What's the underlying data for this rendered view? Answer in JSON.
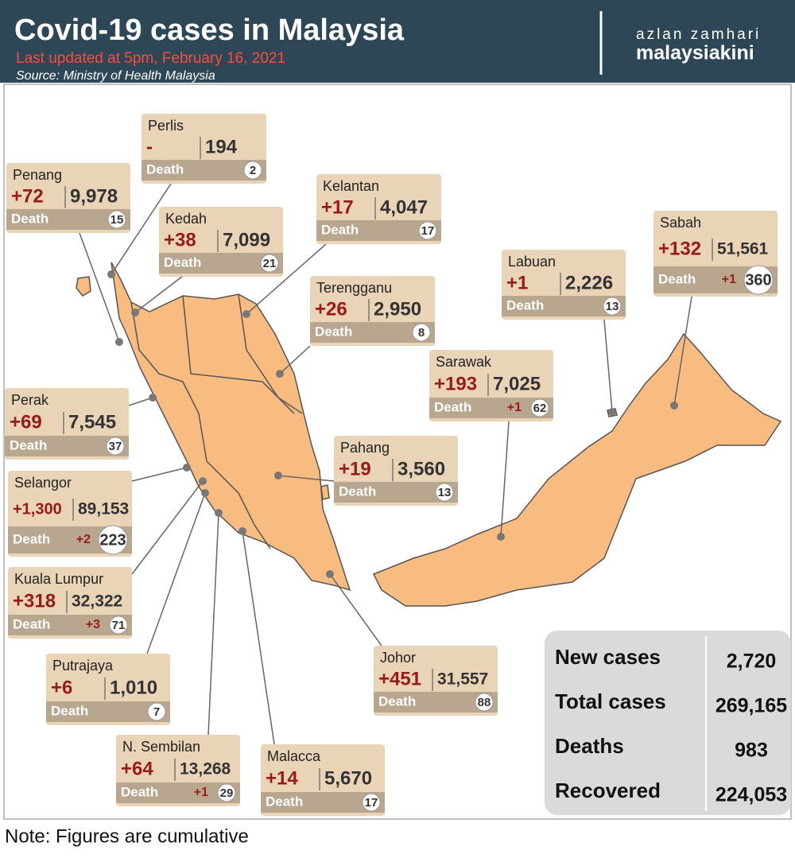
{
  "header": {
    "title": "Covid-19 cases in Malaysia",
    "subtitle": "Last updated at 5pm, February 16, 2021",
    "source": "Source: Ministry of Health Malaysia"
  },
  "brand": {
    "author": "azlan zamhari",
    "name": "malaysiakini"
  },
  "death_label": "Death",
  "states": [
    {
      "name": "Perlis",
      "new": "-",
      "total": "194",
      "deaths": "2"
    },
    {
      "name": "Penang",
      "new": "+72",
      "total": "9,978",
      "deaths": "15"
    },
    {
      "name": "Kedah",
      "new": "+38",
      "total": "7,099",
      "deaths": "21"
    },
    {
      "name": "Kelantan",
      "new": "+17",
      "total": "4,047",
      "deaths": "17"
    },
    {
      "name": "Terengganu",
      "new": "+26",
      "total": "2,950",
      "deaths": "8"
    },
    {
      "name": "Labuan",
      "new": "+1",
      "total": "2,226",
      "deaths": "13"
    },
    {
      "name": "Sabah",
      "new": "+132",
      "total": "51,561",
      "death_new": "+1",
      "deaths": "360"
    },
    {
      "name": "Sarawak",
      "new": "+193",
      "total": "7,025",
      "death_new": "+1",
      "deaths": "62"
    },
    {
      "name": "Perak",
      "new": "+69",
      "total": "7,545",
      "deaths": "37"
    },
    {
      "name": "Pahang",
      "new": "+19",
      "total": "3,560",
      "deaths": "13"
    },
    {
      "name": "Selangor",
      "new": "+1,300",
      "total": "89,153",
      "death_new": "+2",
      "deaths": "223"
    },
    {
      "name": "Kuala Lumpur",
      "new": "+318",
      "total": "32,322",
      "death_new": "+3",
      "deaths": "71"
    },
    {
      "name": "Putrajaya",
      "new": "+6",
      "total": "1,010",
      "deaths": "7"
    },
    {
      "name": "Johor",
      "new": "+451",
      "total": "31,557",
      "deaths": "88"
    },
    {
      "name": "N. Sembilan",
      "new": "+64",
      "total": "13,268",
      "death_new": "+1",
      "deaths": "29"
    },
    {
      "name": "Malacca",
      "new": "+14",
      "total": "5,670",
      "deaths": "17"
    }
  ],
  "summary": [
    {
      "label": "New cases",
      "value": "2,720"
    },
    {
      "label": "Total cases",
      "value": "269,165"
    },
    {
      "label": "Deaths",
      "value": "983"
    },
    {
      "label": "Recovered",
      "value": "224,053"
    }
  ],
  "note": "Note: Figures are cumulative"
}
